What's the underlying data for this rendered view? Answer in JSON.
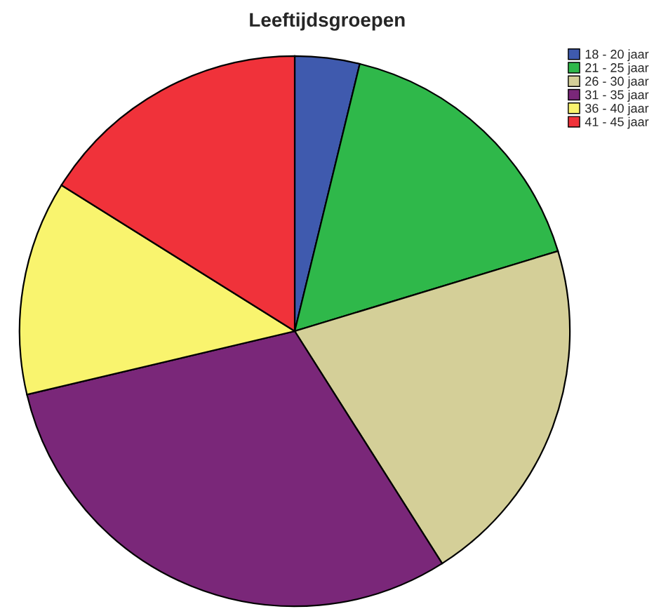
{
  "chart_data": {
    "type": "pie",
    "title": "Leeftijdsgroepen",
    "categories": [
      "18 - 20 jaar",
      "21 - 25 jaar",
      "26 - 30 jaar",
      "31 - 35 jaar",
      "36 - 40 jaar",
      "41 - 45 jaar"
    ],
    "values": [
      3.8,
      16.5,
      20.7,
      30.3,
      12.6,
      16.1
    ],
    "colors": [
      "#3f5aae",
      "#2fb84a",
      "#d4cf98",
      "#7a2779",
      "#f9f46e",
      "#f0323a"
    ],
    "legend": "top right"
  }
}
